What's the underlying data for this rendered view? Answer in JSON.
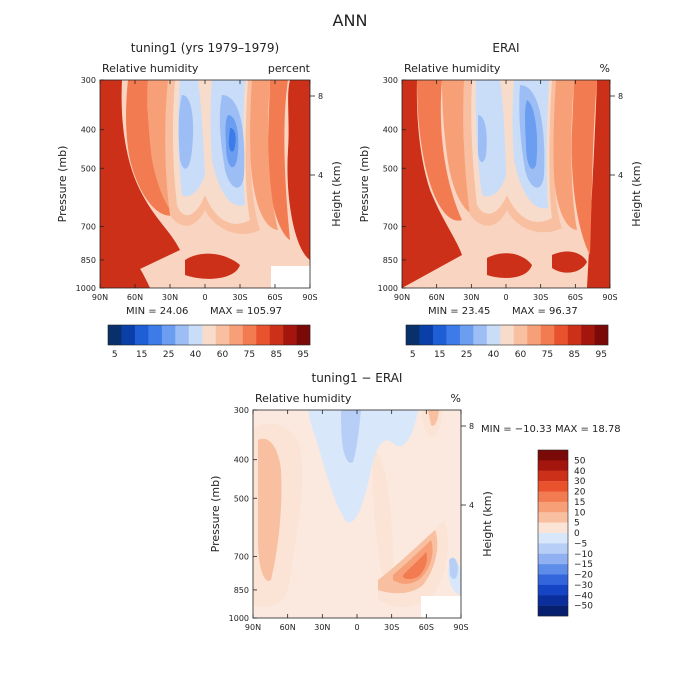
{
  "figure": {
    "title": "ANN"
  },
  "chart_data": [
    {
      "type": "heatmap",
      "title": "tuning1 (yrs 1979–1979)",
      "subtitle_left": "Relative humidity",
      "subtitle_right": "percent",
      "ylabel": "Pressure (mb)",
      "ylabel_right": "Height (km)",
      "x_ticks": [
        "90N",
        "60N",
        "30N",
        "0",
        "30S",
        "60S",
        "90S"
      ],
      "x_range": [
        "90N",
        "90S"
      ],
      "y_ticks": [
        300,
        400,
        500,
        700,
        850,
        1000
      ],
      "y_range": [
        1000,
        300
      ],
      "y_scale": "log",
      "right_ticks": [
        8,
        4
      ],
      "min_text": "MIN =  24.06",
      "max_text": "MAX = 105.97",
      "colorbar": {
        "orientation": "horizontal",
        "colors": [
          "#08306b",
          "#0a3fa8",
          "#1f5fd6",
          "#3d7be8",
          "#6b9ef0",
          "#9dbef5",
          "#c9dcf8",
          "#f7dccb",
          "#f8bfa0",
          "#f7a078",
          "#f37b52",
          "#e8532e",
          "#cc3018",
          "#a4160d",
          "#7a0a08"
        ],
        "labels": [
          "5",
          "15",
          "25",
          "40",
          "60",
          "75",
          "85",
          "95"
        ]
      },
      "field_levels": [
        {
          "approx_value": 95,
          "color": "#cc3018"
        },
        {
          "approx_value": 85,
          "color": "#f37b52"
        },
        {
          "approx_value": 75,
          "color": "#f7a078"
        },
        {
          "approx_value": 60,
          "color": "#f8bfa0"
        },
        {
          "approx_value": 50,
          "color": "#f7dccb"
        },
        {
          "approx_value": 40,
          "color": "#c9dcf8"
        },
        {
          "approx_value": 30,
          "color": "#9dbef5"
        },
        {
          "approx_value": 20,
          "color": "#6b9ef0"
        },
        {
          "approx_value": 15,
          "color": "#3d7be8"
        }
      ]
    },
    {
      "type": "heatmap",
      "title": "ERAI",
      "subtitle_left": "Relative humidity",
      "subtitle_right": "%",
      "ylabel": "Pressure (mb)",
      "ylabel_right": "Height (km)",
      "x_ticks": [
        "90N",
        "60N",
        "30N",
        "0",
        "30S",
        "60S",
        "90S"
      ],
      "x_range": [
        "90N",
        "90S"
      ],
      "y_ticks": [
        300,
        400,
        500,
        700,
        850,
        1000
      ],
      "y_range": [
        1000,
        300
      ],
      "y_scale": "log",
      "right_ticks": [
        8,
        4
      ],
      "min_text": "MIN =  23.45",
      "max_text": "MAX =  96.37",
      "colorbar": {
        "orientation": "horizontal",
        "colors": [
          "#08306b",
          "#0a3fa8",
          "#1f5fd6",
          "#3d7be8",
          "#6b9ef0",
          "#9dbef5",
          "#c9dcf8",
          "#f7dccb",
          "#f8bfa0",
          "#f7a078",
          "#f37b52",
          "#e8532e",
          "#cc3018",
          "#a4160d",
          "#7a0a08"
        ],
        "labels": [
          "5",
          "15",
          "25",
          "40",
          "60",
          "75",
          "85",
          "95"
        ]
      },
      "field_levels": [
        {
          "approx_value": 95,
          "color": "#cc3018"
        },
        {
          "approx_value": 85,
          "color": "#f37b52"
        },
        {
          "approx_value": 75,
          "color": "#f7a078"
        },
        {
          "approx_value": 60,
          "color": "#f8bfa0"
        },
        {
          "approx_value": 50,
          "color": "#f7dccb"
        },
        {
          "approx_value": 40,
          "color": "#c9dcf8"
        },
        {
          "approx_value": 30,
          "color": "#9dbef5"
        },
        {
          "approx_value": 20,
          "color": "#6b9ef0"
        }
      ]
    },
    {
      "type": "heatmap",
      "title": "tuning1 − ERAI",
      "subtitle_left": "Relative humidity",
      "subtitle_right": "%",
      "ylabel": "Pressure (mb)",
      "ylabel_right": "Height (km)",
      "x_ticks": [
        "90N",
        "60N",
        "30N",
        "0",
        "30S",
        "60S",
        "90S"
      ],
      "x_range": [
        "90N",
        "90S"
      ],
      "y_ticks": [
        300,
        400,
        500,
        700,
        850,
        1000
      ],
      "y_range": [
        1000,
        300
      ],
      "y_scale": "log",
      "right_ticks": [
        8,
        4
      ],
      "minmax_text": "MIN = −10.33   MAX =  18.78",
      "colorbar": {
        "orientation": "vertical",
        "colors": [
          "#7a0a08",
          "#a4160d",
          "#cc3018",
          "#e8532e",
          "#f37b52",
          "#f7a078",
          "#f8bfa0",
          "#fbe4d6",
          "#d8e7fa",
          "#b7cff7",
          "#8fb1f2",
          "#5d8de9",
          "#3366dd",
          "#1544c4",
          "#0a2f9c",
          "#061f6e"
        ],
        "labels": [
          "50",
          "40",
          "30",
          "20",
          "15",
          "10",
          "5",
          "0",
          "−5",
          "−10",
          "−15",
          "−20",
          "−30",
          "−40",
          "−50"
        ]
      },
      "field_levels": [
        {
          "approx_value": 0,
          "color": "#fbe4d6"
        },
        {
          "approx_value": 5,
          "color": "#f8bfa0"
        },
        {
          "approx_value": 10,
          "color": "#f7a078"
        },
        {
          "approx_value": 15,
          "color": "#f37b52"
        },
        {
          "approx_value": -5,
          "color": "#d8e7fa"
        },
        {
          "approx_value": -10,
          "color": "#b7cff7"
        }
      ]
    }
  ]
}
